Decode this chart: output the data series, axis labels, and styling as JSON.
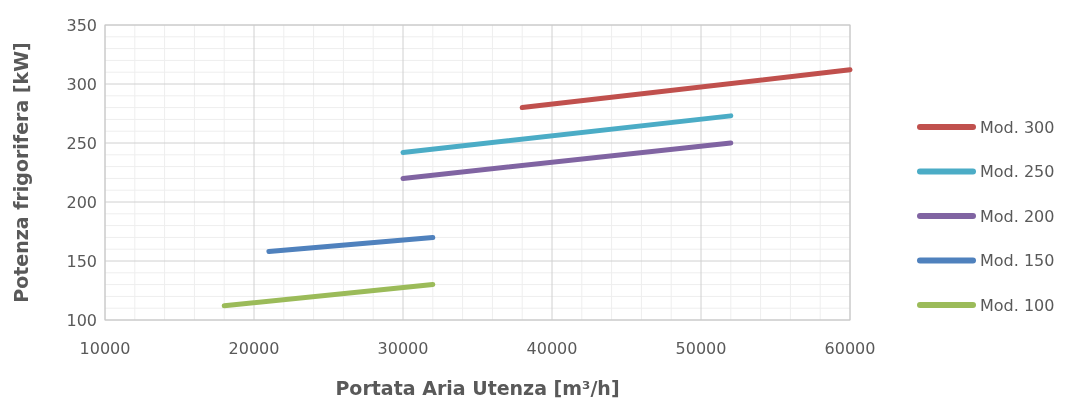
{
  "chart_data": {
    "type": "line",
    "xlabel": "Portata Aria Utenza [m³/h]",
    "ylabel": "Potenza frigorifera [kW]",
    "xlim": [
      10000,
      60000
    ],
    "xticks": [
      10000,
      20000,
      30000,
      40000,
      50000,
      60000
    ],
    "ylim": [
      100,
      350
    ],
    "yticks": [
      100,
      150,
      200,
      250,
      300,
      350
    ],
    "grid": true,
    "legend": "right",
    "marker": "none",
    "line_style": "solid",
    "series": [
      {
        "name": "Mod. 300",
        "color": "#c0504d",
        "x": [
          38000,
          60000
        ],
        "values": [
          280,
          312
        ]
      },
      {
        "name": "Mod. 250",
        "color": "#4bacc6",
        "x": [
          30000,
          52000
        ],
        "values": [
          242,
          273
        ]
      },
      {
        "name": "Mod. 200",
        "color": "#8064a2",
        "x": [
          30000,
          52000
        ],
        "values": [
          220,
          250
        ]
      },
      {
        "name": "Mod. 150",
        "color": "#4f81bd",
        "x": [
          21000,
          32000
        ],
        "values": [
          158,
          170
        ]
      },
      {
        "name": "Mod. 100",
        "color": "#9bbb59",
        "x": [
          18000,
          32000
        ],
        "values": [
          112,
          130
        ]
      }
    ]
  }
}
